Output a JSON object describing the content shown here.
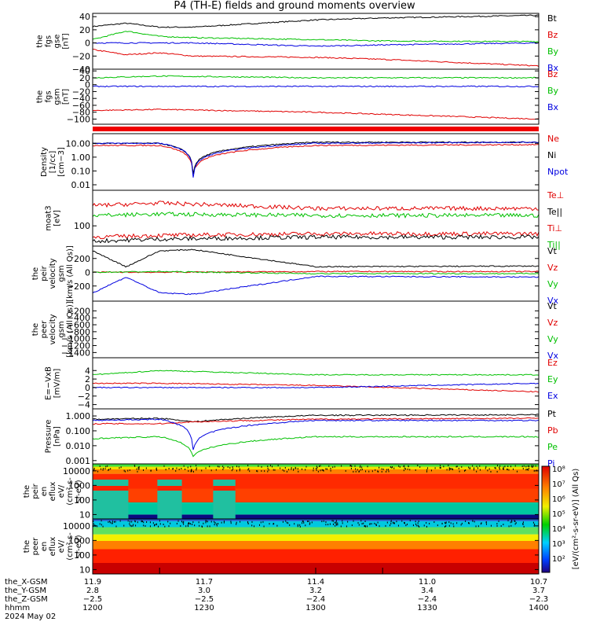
{
  "title": "P4 (TH-E) fields and ground moments overview",
  "panels": [
    {
      "id": "fgs_gse",
      "ylabel": [
        "the",
        "fgs",
        "gse",
        "[nT]"
      ],
      "ylim": [
        -40,
        45
      ],
      "log": false,
      "ticks": [
        [
          "40",
          40
        ],
        [
          "20",
          20
        ],
        [
          "0",
          0
        ],
        [
          "−20",
          -20
        ],
        [
          "−40",
          -40
        ]
      ],
      "legend": [
        [
          "Bt",
          "#000000"
        ],
        [
          "Bz",
          "#e00000"
        ],
        [
          "By",
          "#00c000"
        ],
        [
          "Bx",
          "#0000e0"
        ]
      ]
    },
    {
      "id": "fgs_gsm",
      "ylabel": [
        "the",
        "fgs",
        "gsm",
        "[nT]"
      ],
      "ylim": [
        -115,
        45
      ],
      "log": false,
      "ticks": [
        [
          "40",
          40
        ],
        [
          "20",
          20
        ],
        [
          "0",
          0
        ],
        [
          "−20",
          -20
        ],
        [
          "−40",
          -40
        ],
        [
          "−60",
          -60
        ],
        [
          "−80",
          -80
        ],
        [
          "−100",
          -100
        ]
      ],
      "legend": [
        [
          "Bz",
          "#e00000"
        ],
        [
          "By",
          "#00c000"
        ],
        [
          "Bx",
          "#0000e0"
        ]
      ]
    },
    {
      "id": "density",
      "ylabel": [
        "Density",
        "[1/cc]",
        "[cm−3]"
      ],
      "ylim": [
        0.004,
        50
      ],
      "log": true,
      "ticks": [
        [
          "10.00",
          10
        ],
        [
          "1.00",
          1
        ],
        [
          "0.10",
          0.1
        ],
        [
          "0.01",
          0.01
        ]
      ],
      "legend": [
        [
          "Ne",
          "#e00000"
        ],
        [
          "Ni",
          "#000000"
        ],
        [
          "Npot",
          "#0000e0"
        ]
      ]
    },
    {
      "id": "temperature",
      "ylabel": [
        "moat3",
        "[eV]"
      ],
      "ylim": [
        40,
        500
      ],
      "log": true,
      "ticks": [
        [
          "100",
          100
        ]
      ],
      "legend": [
        [
          "Te⊥",
          "#e00000"
        ],
        [
          "Te||",
          "#000000"
        ],
        [
          "Ti⊥",
          "#e00000"
        ],
        [
          "Ti||",
          "#00c000"
        ]
      ]
    },
    {
      "id": "peir_velocity",
      "ylabel": [
        "the",
        "peir",
        "velocity",
        "gsm",
        "[km/s (All Qs)]"
      ],
      "ylim": [
        -420,
        380
      ],
      "log": false,
      "ticks": [
        [
          "200",
          200
        ],
        [
          "0",
          0
        ],
        [
          "−200",
          -200
        ]
      ],
      "legend": [
        [
          "Vt",
          "#000000"
        ],
        [
          "Vz",
          "#e00000"
        ],
        [
          "Vy",
          "#00c000"
        ],
        [
          "Vx",
          "#0000e0"
        ]
      ]
    },
    {
      "id": "peer_velocity",
      "ylabel": [
        "the",
        "peer",
        "velocity",
        "gsm",
        "[km/s (All Qs)]"
      ],
      "ylim": [
        -1550,
        80
      ],
      "log": false,
      "ticks": [
        [
          "−200",
          -200
        ],
        [
          "−400",
          -400
        ],
        [
          "−600",
          -600
        ],
        [
          "−800",
          -800
        ],
        [
          "−1000",
          -1000
        ],
        [
          "−1200",
          -1200
        ],
        [
          "−1400",
          -1400
        ]
      ],
      "legend": [
        [
          "Vt",
          "#000000"
        ],
        [
          "Vz",
          "#e00000"
        ],
        [
          "Vy",
          "#00c000"
        ],
        [
          "Vx",
          "#0000e0"
        ]
      ]
    },
    {
      "id": "efield",
      "ylabel": [
        "E=−VxB",
        "[mV/m]"
      ],
      "ylim": [
        -5,
        7
      ],
      "log": false,
      "ticks": [
        [
          "4",
          4
        ],
        [
          "2",
          2
        ],
        [
          "0",
          0
        ],
        [
          "−2",
          -2
        ],
        [
          "−4",
          -4
        ]
      ],
      "legend": [
        [
          "Ez",
          "#e00000"
        ],
        [
          "Ey",
          "#00c000"
        ],
        [
          "Ex",
          "#0000e0"
        ]
      ]
    },
    {
      "id": "pressure",
      "ylabel": [
        "Pressure",
        "[nPa]"
      ],
      "ylim": [
        0.0006,
        3
      ],
      "log": true,
      "ticks": [
        [
          "1.000",
          1
        ],
        [
          "0.100",
          0.1
        ],
        [
          "0.010",
          0.01
        ],
        [
          "0.001",
          0.001
        ]
      ],
      "legend": [
        [
          "Pt",
          "#000000"
        ],
        [
          "Pb",
          "#e00000"
        ],
        [
          "Pe",
          "#00c000"
        ],
        [
          "Pi",
          "#0000e0"
        ]
      ]
    },
    {
      "id": "peir_en_eflux",
      "ylabel": [
        "the",
        "peir",
        "en",
        "eflux",
        "eV/",
        "(cm²-s-",
        "sr-eV)"
      ],
      "ylim": [
        5,
        30000
      ],
      "log": true,
      "ticks": [
        [
          "10000",
          10000
        ],
        [
          "1000",
          1000
        ],
        [
          "100",
          100
        ],
        [
          "10",
          10
        ]
      ],
      "legend": []
    },
    {
      "id": "peer_en_eflux",
      "ylabel": [
        "the",
        "peer",
        "en",
        "eflux",
        "eV/",
        "(cm²-s-",
        "sr-eV)"
      ],
      "ylim": [
        5,
        30000
      ],
      "log": true,
      "ticks": [
        [
          "10000",
          10000
        ],
        [
          "1000",
          1000
        ],
        [
          "100",
          100
        ],
        [
          "10",
          10
        ]
      ],
      "legend": []
    }
  ],
  "colorbar": {
    "ticks": [
      "10⁸",
      "10⁷",
      "10⁶",
      "10⁵",
      "10⁴",
      "10³",
      "10²"
    ],
    "label": "[eV/(cm²-s-sr-eV)] (All Qs)"
  },
  "xaxis": {
    "rows": [
      {
        "name": "the_X-GSM",
        "values": [
          "11.9",
          "11.7",
          "11.4",
          "11.0",
          "10.7"
        ]
      },
      {
        "name": "the_Y-GSM",
        "values": [
          "2.8",
          "3.0",
          "3.2",
          "3.4",
          "3.7"
        ]
      },
      {
        "name": "the_Z-GSM",
        "values": [
          "−2.5",
          "−2.5",
          "−2.4",
          "−2.4",
          "−2.3"
        ]
      },
      {
        "name": "hhmm",
        "values": [
          "1200",
          "1230",
          "1300",
          "1330",
          "1400"
        ]
      }
    ],
    "date": "2024 May 02"
  },
  "chart_data": [
    {
      "type": "line",
      "title": "P4 (TH-E) fields and ground moments overview",
      "ylabel": "the fgs gse [nT]",
      "x_units": "hhmm",
      "series": [
        {
          "name": "Bt",
          "x": [
            1200,
            1215,
            1230,
            1245,
            1300,
            1330,
            1400
          ],
          "values": [
            25,
            30,
            24,
            24,
            35,
            38,
            42
          ]
        },
        {
          "name": "Bz",
          "x": [
            1200,
            1215,
            1230,
            1245,
            1300,
            1330,
            1400
          ],
          "values": [
            -10,
            -18,
            -15,
            -20,
            -22,
            -25,
            -35
          ]
        },
        {
          "name": "By",
          "x": [
            1200,
            1215,
            1230,
            1245,
            1300,
            1330,
            1400
          ],
          "values": [
            5,
            18,
            10,
            8,
            5,
            3,
            2
          ]
        },
        {
          "name": "Bx",
          "x": [
            1200,
            1215,
            1230,
            1245,
            1300,
            1330,
            1400
          ],
          "values": [
            0,
            0,
            0,
            0,
            -5,
            -3,
            0
          ]
        }
      ]
    },
    {
      "type": "line",
      "ylabel": "the fgs gsm [nT]",
      "x_units": "hhmm",
      "series": [
        {
          "name": "Bz",
          "x": [
            1200,
            1230,
            1300,
            1400
          ],
          "values": [
            -75,
            -72,
            -80,
            -100
          ]
        },
        {
          "name": "By",
          "x": [
            1200,
            1230,
            1300,
            1400
          ],
          "values": [
            20,
            25,
            20,
            20
          ]
        },
        {
          "name": "Bx",
          "x": [
            1200,
            1230,
            1300,
            1400
          ],
          "values": [
            -5,
            -5,
            -5,
            -5
          ]
        }
      ]
    },
    {
      "type": "line",
      "ylabel": "Density [1/cc]",
      "yscale": "log",
      "x_units": "hhmm",
      "series": [
        {
          "name": "Ne",
          "x": [
            1200,
            1230,
            1245,
            1300,
            1400
          ],
          "values": [
            7,
            7,
            0.05,
            7,
            8
          ]
        },
        {
          "name": "Ni",
          "x": [
            1200,
            1230,
            1245,
            1300,
            1400
          ],
          "values": [
            10,
            10,
            0.05,
            12,
            12
          ]
        },
        {
          "name": "Npot",
          "x": [
            1200,
            1230,
            1245,
            1300,
            1400
          ],
          "values": [
            10,
            10,
            0.02,
            10,
            12
          ]
        }
      ]
    },
    {
      "type": "line",
      "ylabel": "moat3 [eV]",
      "yscale": "log",
      "x_units": "hhmm",
      "series": [
        {
          "name": "Te⊥",
          "x": [
            1200,
            1230,
            1300,
            1400
          ],
          "values": [
            60,
            65,
            70,
            70
          ]
        },
        {
          "name": "Te||",
          "x": [
            1200,
            1230,
            1300,
            1400
          ],
          "values": [
            50,
            55,
            60,
            60
          ]
        },
        {
          "name": "Ti⊥",
          "x": [
            1200,
            1230,
            1300,
            1400
          ],
          "values": [
            250,
            280,
            220,
            220
          ]
        },
        {
          "name": "Ti||",
          "x": [
            1200,
            1230,
            1300,
            1400
          ],
          "values": [
            160,
            170,
            160,
            160
          ]
        }
      ]
    },
    {
      "type": "line",
      "ylabel": "the peir velocity gsm [km/s (All Qs)]",
      "x_units": "hhmm",
      "series": [
        {
          "name": "Vt",
          "x": [
            1200,
            1215,
            1230,
            1245,
            1300,
            1400
          ],
          "values": [
            310,
            80,
            310,
            330,
            80,
            90
          ]
        },
        {
          "name": "Vz",
          "x": [
            1200,
            1230,
            1300,
            1400
          ],
          "values": [
            0,
            0,
            10,
            10
          ]
        },
        {
          "name": "Vy",
          "x": [
            1200,
            1230,
            1300,
            1400
          ],
          "values": [
            0,
            10,
            -20,
            -20
          ]
        },
        {
          "name": "Vx",
          "x": [
            1200,
            1215,
            1230,
            1245,
            1300,
            1400
          ],
          "values": [
            -300,
            -70,
            -300,
            -320,
            -60,
            -70
          ]
        }
      ]
    },
    {
      "type": "line",
      "ylabel": "the peer velocity gsm [km/s (All Qs)]",
      "x_units": "hhmm",
      "series": []
    },
    {
      "type": "line",
      "ylabel": "E=−VxB [mV/m]",
      "x_units": "hhmm",
      "series": [
        {
          "name": "Ez",
          "x": [
            1200,
            1230,
            1300,
            1400
          ],
          "values": [
            1,
            1,
            0.5,
            -1
          ]
        },
        {
          "name": "Ey",
          "x": [
            1200,
            1230,
            1300,
            1400
          ],
          "values": [
            3,
            4,
            3,
            3
          ]
        },
        {
          "name": "Ex",
          "x": [
            1200,
            1230,
            1300,
            1400
          ],
          "values": [
            0,
            0,
            0,
            1
          ]
        }
      ]
    },
    {
      "type": "line",
      "ylabel": "Pressure [nPa]",
      "yscale": "log",
      "x_units": "hhmm",
      "series": [
        {
          "name": "Pt",
          "x": [
            1200,
            1230,
            1245,
            1300,
            1400
          ],
          "values": [
            0.6,
            0.7,
            0.4,
            1.1,
            1.2
          ]
        },
        {
          "name": "Pb",
          "x": [
            1200,
            1230,
            1245,
            1300,
            1400
          ],
          "values": [
            0.3,
            0.3,
            0.4,
            0.6,
            0.7
          ]
        },
        {
          "name": "Pe",
          "x": [
            1200,
            1230,
            1245,
            1300,
            1400
          ],
          "values": [
            0.03,
            0.04,
            0.002,
            0.04,
            0.04
          ]
        },
        {
          "name": "Pi",
          "x": [
            1200,
            1230,
            1245,
            1300,
            1400
          ],
          "values": [
            0.5,
            0.6,
            0.005,
            0.5,
            0.5
          ]
        }
      ]
    },
    {
      "type": "heatmap",
      "ylabel": "the peir en eflux eV/(cm²-s-sr-eV)",
      "yscale": "log",
      "ylim": [
        5,
        30000
      ],
      "x_units": "hhmm"
    },
    {
      "type": "heatmap",
      "ylabel": "the peer en eflux eV/(cm²-s-sr-eV)",
      "yscale": "log",
      "ylim": [
        5,
        30000
      ],
      "x_units": "hhmm"
    }
  ]
}
